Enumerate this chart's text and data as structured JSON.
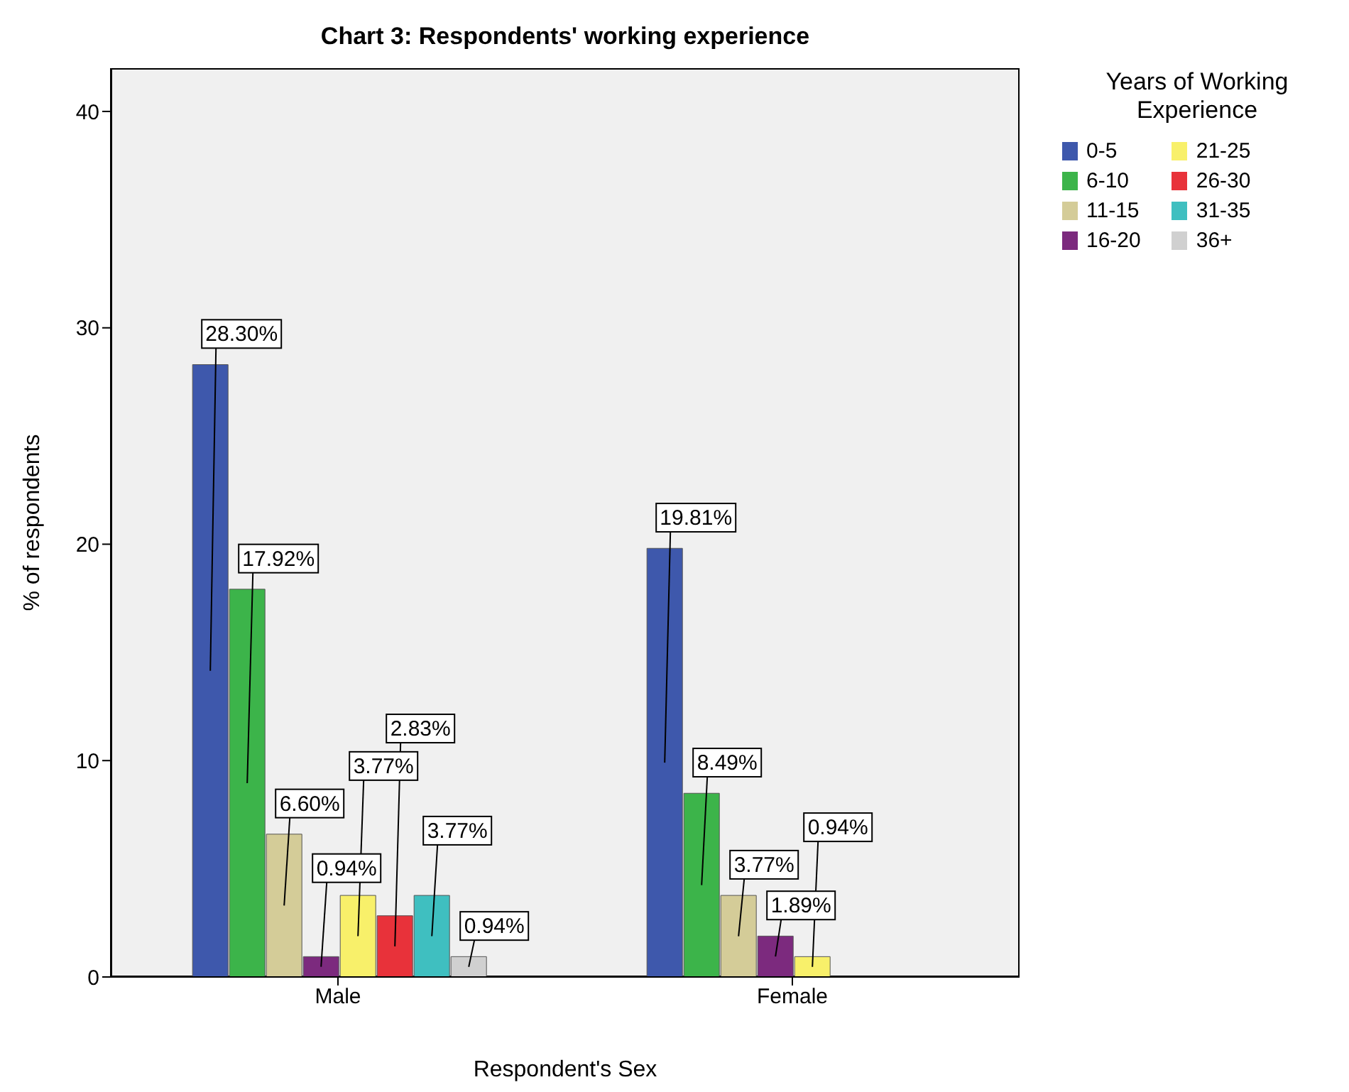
{
  "chart_data": {
    "type": "bar",
    "title": "Chart 3: Respondents' working experience",
    "xlabel": "Respondent's Sex",
    "ylabel": "% of respondents",
    "legend_title": "Years of Working Experience",
    "legend": "right",
    "categories": [
      "Male",
      "Female"
    ],
    "ylim": [
      0,
      42
    ],
    "yticks": [
      0,
      10,
      20,
      30,
      40
    ],
    "series": [
      {
        "name": "0-5",
        "color": "#3e58ac",
        "values": [
          28.3,
          19.81
        ],
        "value_labels": [
          "28.30%",
          "19.81%"
        ]
      },
      {
        "name": "6-10",
        "color": "#3cb44a",
        "values": [
          17.92,
          8.49
        ],
        "value_labels": [
          "17.92%",
          "8.49%"
        ]
      },
      {
        "name": "11-15",
        "color": "#d4cc98",
        "values": [
          6.6,
          3.77
        ],
        "value_labels": [
          "6.60%",
          "3.77%"
        ]
      },
      {
        "name": "16-20",
        "color": "#7c2a7e",
        "values": [
          0.94,
          1.89
        ],
        "value_labels": [
          "0.94%",
          "1.89%"
        ]
      },
      {
        "name": "21-25",
        "color": "#f8f06a",
        "values": [
          3.77,
          0.94
        ],
        "value_labels": [
          "3.77%",
          "0.94%"
        ]
      },
      {
        "name": "26-30",
        "color": "#e8323a",
        "values": [
          2.83,
          null
        ],
        "value_labels": [
          "2.83%",
          null
        ]
      },
      {
        "name": "31-35",
        "color": "#3fbfc0",
        "values": [
          3.77,
          null
        ],
        "value_labels": [
          "3.77%",
          null
        ]
      },
      {
        "name": "36+",
        "color": "#d0d0d0",
        "values": [
          0.94,
          null
        ],
        "value_labels": [
          "0.94%",
          null
        ]
      }
    ]
  }
}
